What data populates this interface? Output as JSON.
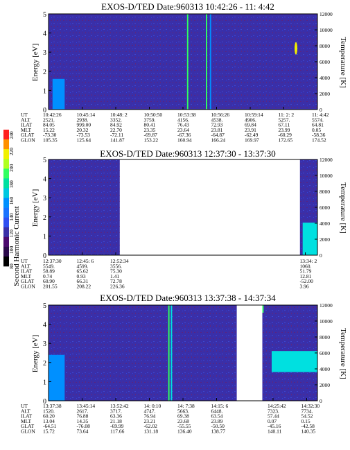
{
  "colorbar": {
    "label": "Second Harmonic Current",
    "ticks": [
      "240",
      "220",
      "200",
      "180",
      "160",
      "140",
      "120",
      "100",
      "80"
    ]
  },
  "panels": [
    {
      "title": "EXOS-D/TED   Date:960313   10:42:26 - 11: 4:42",
      "ylabel": "Energy [eV]",
      "y2label": "Temperature [K]",
      "yticks": [
        "0",
        "1",
        "2",
        "3",
        "4",
        "5"
      ],
      "y2ticks": [
        "0",
        "2000",
        "4000",
        "6000",
        "8000",
        "10000",
        "12000"
      ],
      "row_labels": [
        "UT",
        "ALT",
        "ILAT",
        "MLT",
        "GLAT",
        "GLON"
      ],
      "columns": [
        [
          "10:42:26",
          "2521.",
          "84.05",
          "15.22",
          "-73.30",
          "105.35"
        ],
        [
          "10:45:14",
          "2938.",
          "999.00",
          "20.32",
          "-73.53",
          "125.64"
        ],
        [
          "10:48: 2",
          "3352.",
          "84.92",
          "22.70",
          "-72.11",
          "141.87"
        ],
        [
          "10:50:50",
          "3759.",
          "80.41",
          "23.35",
          "-69.87",
          "153.22"
        ],
        [
          "10:53:38",
          "4156.",
          "76.43",
          "23.64",
          "-67.36",
          "160.94"
        ],
        [
          "10:56:26",
          "4538.",
          "72.93",
          "23.81",
          "-64.87",
          "166.24"
        ],
        [
          "10:59:14",
          "4906.",
          "69.84",
          "23.91",
          "-62.49",
          "169.97"
        ],
        [
          "11: 2: 2",
          "5257.",
          "67.11",
          "23.99",
          "-60.29",
          "172.65"
        ],
        [
          "11: 4:42",
          "5574.",
          "64.81",
          "0.05",
          "-58.36",
          "174.52"
        ]
      ]
    },
    {
      "title": "EXOS-D/TED   Date:960313   12:37:30 - 13:37:30",
      "ylabel": "Energy [eV]",
      "y2label": "Temperature [K]",
      "yticks": [
        "0",
        "1",
        "2",
        "3",
        "4",
        "5"
      ],
      "y2ticks": [
        "0",
        "2000",
        "4000",
        "6000",
        "8000",
        "10000",
        "12000"
      ],
      "row_labels": [
        "UT",
        "ALT",
        "ILAT",
        "MLT",
        "GLAT",
        "GLON"
      ],
      "columns": [
        [
          "12:37:30",
          "5549.",
          "58.89",
          "0.74",
          "60.90",
          "201.55"
        ],
        [
          "12:45: 6",
          "4599.",
          "65.62",
          "0.93",
          "66.31",
          "208.22"
        ],
        [
          "12:52:34",
          "3556.",
          "75.30",
          "1.41",
          "72.78",
          "226.36"
        ],
        [
          "13:34: 2",
          "1060.",
          "51.79",
          "12.81",
          "-52.00",
          "3.96"
        ]
      ]
    },
    {
      "title": "EXOS-D/TED   Date:960313   13:37:38 - 14:37:34",
      "ylabel": "Energy [eV]",
      "y2label": "Temperature [K]",
      "yticks": [
        "0",
        "1",
        "2",
        "3",
        "4",
        "5"
      ],
      "y2ticks": [
        "0",
        "2000",
        "4000",
        "6000",
        "8000",
        "10000",
        "12000"
      ],
      "row_labels": [
        "UT",
        "ALT",
        "ILAT",
        "MLT",
        "GLAT",
        "GLON"
      ],
      "columns": [
        [
          "13:37:38",
          "1520.",
          "60.20",
          "13.04",
          "-64.51",
          "15.72"
        ],
        [
          "13:45:14",
          "2617.",
          "76.88",
          "14.35",
          "-76.08",
          "73.64"
        ],
        [
          "13:52:42",
          "3717.",
          "63.36",
          "21.18",
          "-69.99",
          "117.66"
        ],
        [
          "14: 0:10",
          "4747.",
          "76.94",
          "23.21",
          "-62.02",
          "131.18"
        ],
        [
          "14: 7:38",
          "5663.",
          "69.38",
          "23.68",
          "-55.55",
          "136.40"
        ],
        [
          "14:15: 6",
          "6448.",
          "63.54",
          "23.89",
          "-50.50",
          "138.77"
        ],
        [
          "14:25:42",
          "7323.",
          "57.44",
          "0.07",
          "-45.16",
          "140.11"
        ],
        [
          "14:32:30",
          "7734.",
          "54.52",
          "0.15",
          "-42.58",
          "140.35"
        ]
      ]
    }
  ],
  "chart_data": [
    {
      "type": "heatmap",
      "title": "EXOS-D/TED   Date:960313   10:42:26 - 11: 4:42",
      "ylabel": "Energy [eV]",
      "y2label": "Temperature [K]",
      "ylim": [
        0,
        5
      ],
      "y2lim": [
        0,
        12000
      ],
      "x_start": "10:42:26",
      "x_end": "11: 4:42",
      "bands": [
        {
          "from": 0.0,
          "to": 1.0,
          "level": 0.35
        },
        {
          "from": 0.015,
          "to": 0.06,
          "level": 0.55,
          "ymax": 1.6
        },
        {
          "from": 0.515,
          "to": 0.52,
          "level": 0.8
        },
        {
          "from": 0.585,
          "to": 0.59,
          "level": 0.85
        },
        {
          "from": 0.6,
          "to": 0.605,
          "level": 0.6
        }
      ],
      "spots": [
        {
          "x": 0.92,
          "y": 3.2,
          "level": 0.9
        }
      ]
    },
    {
      "type": "heatmap",
      "title": "EXOS-D/TED   Date:960313   12:37:30 - 13:37:30",
      "ylabel": "Energy [eV]",
      "y2label": "Temperature [K]",
      "ylim": [
        0,
        5
      ],
      "y2lim": [
        0,
        12000
      ],
      "x_start": "12:37:30",
      "x_end": "13:37:30",
      "bands": [
        {
          "from": 0.0,
          "to": 0.265,
          "level": 0.35
        },
        {
          "from": 0.935,
          "to": 1.0,
          "level": 0.35
        },
        {
          "from": 0.945,
          "to": 1.0,
          "level": 0.7,
          "ymax": 1.7
        }
      ],
      "spots": []
    },
    {
      "type": "heatmap",
      "title": "EXOS-D/TED   Date:960313   13:37:38 - 14:37:34",
      "ylabel": "Energy [eV]",
      "y2label": "Temperature [K]",
      "ylim": [
        0,
        5
      ],
      "y2lim": [
        0,
        12000
      ],
      "x_start": "13:37:38",
      "x_end": "14:37:34",
      "bands": [
        {
          "from": 0.0,
          "to": 0.7,
          "level": 0.35
        },
        {
          "from": 0.795,
          "to": 1.0,
          "level": 0.35
        },
        {
          "from": 0.0,
          "to": 0.06,
          "level": 0.6,
          "ymax": 2.4
        },
        {
          "from": 0.445,
          "to": 0.45,
          "level": 0.85
        },
        {
          "from": 0.455,
          "to": 0.46,
          "level": 0.75
        },
        {
          "from": 0.83,
          "to": 1.0,
          "level": 0.7,
          "ymin": 1.5,
          "ymax": 2.6
        },
        {
          "from": 0.795,
          "to": 0.8,
          "level": 0.8,
          "ymin": 4.6,
          "ymax": 5.0
        }
      ],
      "spots": []
    }
  ]
}
